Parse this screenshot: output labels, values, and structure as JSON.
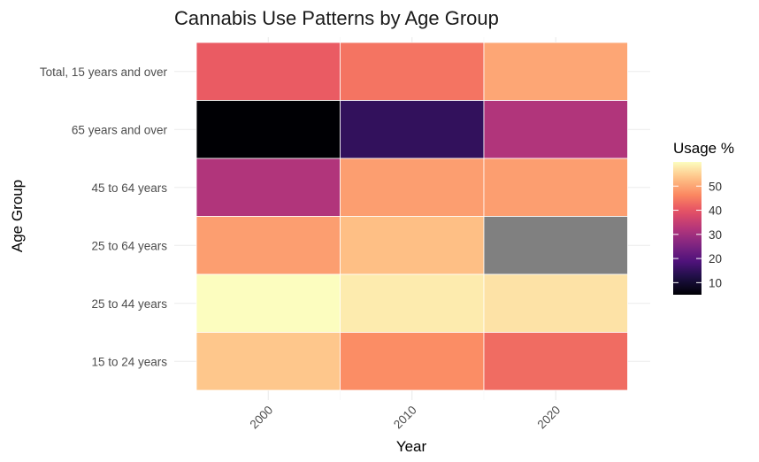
{
  "chart_data": {
    "type": "heatmap",
    "title": "Cannabis Use Patterns by Age Group",
    "xlabel": "Year",
    "ylabel": "Age Group",
    "x_categories": [
      "2000",
      "2010",
      "2020"
    ],
    "y_categories": [
      "15 to 24 years",
      "25 to 44 years",
      "25 to 64 years",
      "45 to 64 years",
      "65 years and over",
      "Total, 15 years and over"
    ],
    "cells": [
      {
        "x": "2000",
        "y": "Total, 15 years and over",
        "value": 41
      },
      {
        "x": "2010",
        "y": "Total, 15 years and over",
        "value": 44
      },
      {
        "x": "2020",
        "y": "Total, 15 years and over",
        "value": 50
      },
      {
        "x": "2000",
        "y": "65 years and over",
        "value": 5
      },
      {
        "x": "2010",
        "y": "65 years and over",
        "value": 15
      },
      {
        "x": "2020",
        "y": "65 years and over",
        "value": 32
      },
      {
        "x": "2000",
        "y": "45 to 64 years",
        "value": 32
      },
      {
        "x": "2010",
        "y": "45 to 64 years",
        "value": 49
      },
      {
        "x": "2020",
        "y": "45 to 64 years",
        "value": 49
      },
      {
        "x": "2000",
        "y": "25 to 64 years",
        "value": 49
      },
      {
        "x": "2010",
        "y": "25 to 64 years",
        "value": 53
      },
      {
        "x": "2020",
        "y": "25 to 64 years",
        "value": null
      },
      {
        "x": "2000",
        "y": "25 to 44 years",
        "value": 60
      },
      {
        "x": "2010",
        "y": "25 to 44 years",
        "value": 58
      },
      {
        "x": "2020",
        "y": "25 to 44 years",
        "value": 57
      },
      {
        "x": "2000",
        "y": "15 to 24 years",
        "value": 54
      },
      {
        "x": "2010",
        "y": "15 to 24 years",
        "value": 47
      },
      {
        "x": "2020",
        "y": "15 to 24 years",
        "value": 43
      }
    ],
    "na_color": "#808080",
    "colorscale": "magma",
    "legend": {
      "title": "Usage %",
      "placement": "right",
      "ticks": [
        10,
        20,
        30,
        40,
        50
      ],
      "range": [
        5,
        60
      ]
    },
    "grid": true
  }
}
